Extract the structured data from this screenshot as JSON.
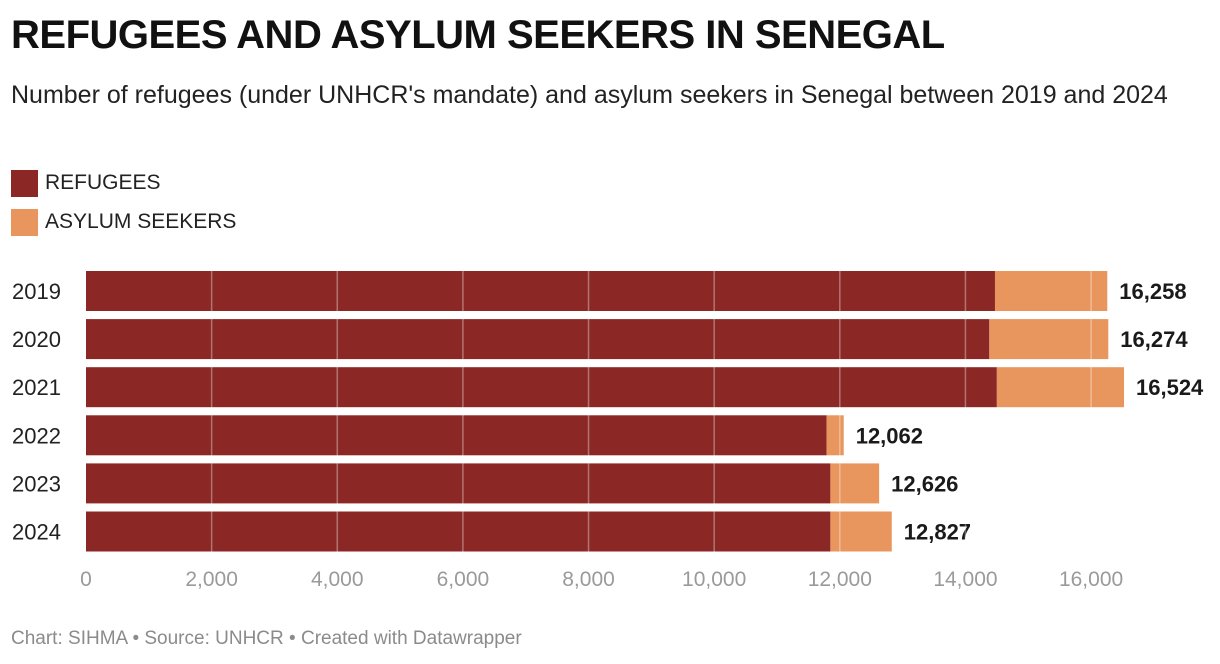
{
  "title": "REFUGEES AND ASYLUM SEEKERS IN SENEGAL",
  "subtitle": "Number of refugees (under UNHCR's mandate) and asylum seekers in Senegal between 2019 and 2024",
  "legend": [
    {
      "label": "REFUGEES",
      "color": "#8b2826"
    },
    {
      "label": "ASYLUM SEEKERS",
      "color": "#e8955e"
    }
  ],
  "footer": {
    "chart_by": "Chart: SIHMA",
    "source": "Source: UNHCR",
    "created_with": "Created with Datawrapper",
    "separator": "•"
  },
  "chart_data": {
    "type": "bar",
    "orientation": "horizontal",
    "stacked": true,
    "categories": [
      "2019",
      "2020",
      "2021",
      "2022",
      "2023",
      "2024"
    ],
    "series": [
      {
        "name": "REFUGEES",
        "color": "#8b2826",
        "values": [
          14470,
          14380,
          14500,
          11790,
          11850,
          11850
        ]
      },
      {
        "name": "ASYLUM SEEKERS",
        "color": "#e8955e",
        "values": [
          1788,
          1894,
          2024,
          272,
          776,
          977
        ]
      }
    ],
    "totals": [
      "16,258",
      "16,274",
      "16,524",
      "12,062",
      "12,626",
      "12,827"
    ],
    "x_ticks": [
      0,
      2000,
      4000,
      6000,
      8000,
      10000,
      12000,
      14000,
      16000
    ],
    "x_tick_labels": [
      "0",
      "2,000",
      "4,000",
      "6,000",
      "8,000",
      "10,000",
      "12,000",
      "14,000",
      "16,000"
    ],
    "xlim": [
      0,
      16524
    ],
    "grid": true
  }
}
